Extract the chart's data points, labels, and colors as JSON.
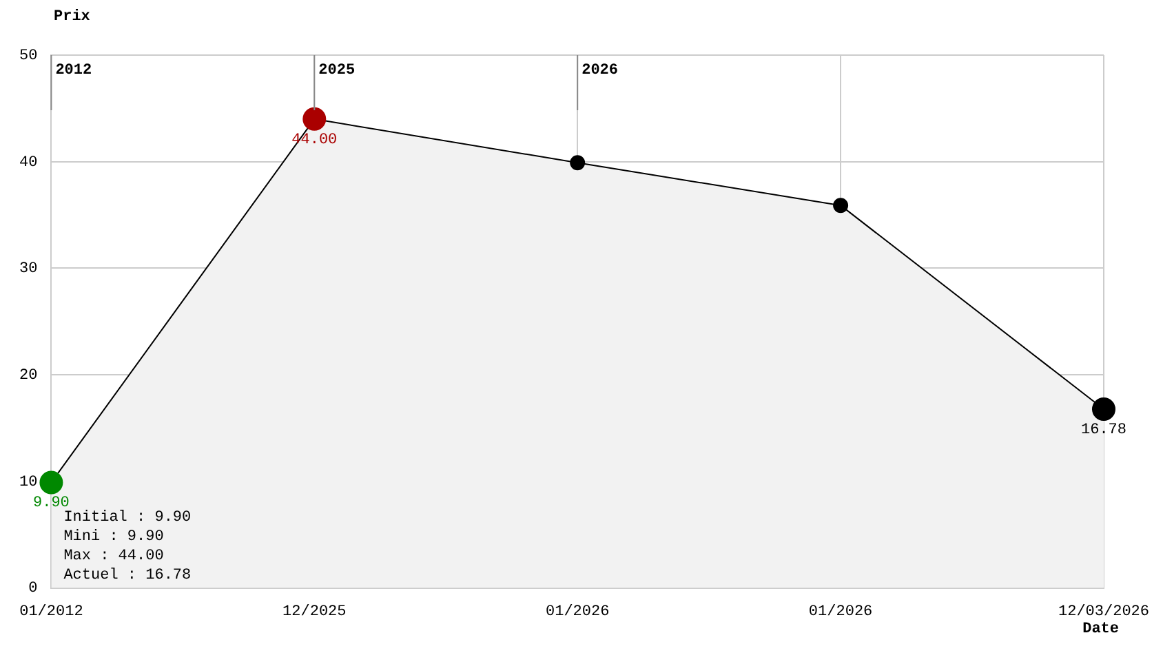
{
  "chart_data": {
    "type": "area",
    "xlabel": "Date",
    "ylabel": "Prix",
    "categories": [
      "01/2012",
      "12/2025",
      "01/2026",
      "01/2026",
      "12/03/2026"
    ],
    "series": [
      {
        "color": "#000000",
        "colors": [
          "#008800",
          "#aa0000",
          "#000000",
          "#000000",
          "#000000"
        ],
        "values": [
          9.9,
          44,
          39.9,
          35.9,
          16.78
        ],
        "value_labels": [
          "9.90",
          "44.00",
          null,
          null,
          "16.78"
        ]
      }
    ],
    "ylim": [
      0,
      50
    ],
    "yticks": [
      0,
      10,
      20,
      30,
      40,
      50
    ],
    "grid": true,
    "legend": false,
    "marker": "circle",
    "ref_lines": [
      {
        "axis": "x",
        "value": "01/2012",
        "label": "2012"
      },
      {
        "axis": "x",
        "value": "12/2025",
        "label": "2025"
      },
      {
        "axis": "x",
        "value": "01/2026",
        "label": "2026"
      }
    ],
    "annotations": [
      "Initial : 9.90",
      "Mini : 9.90",
      "Max : 44.00",
      "Actuel : 16.78"
    ]
  }
}
